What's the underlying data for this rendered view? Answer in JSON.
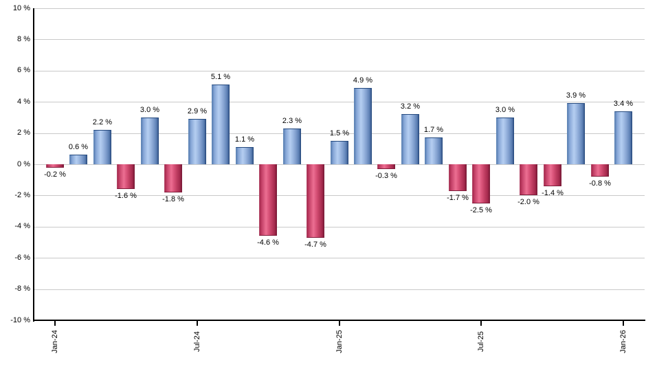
{
  "chart_data": {
    "type": "bar",
    "title": "",
    "xlabel": "",
    "ylabel": "",
    "ylim": [
      -10,
      10
    ],
    "y_step": 2,
    "grid": {
      "horizontal": true,
      "vertical": false
    },
    "legend": "none",
    "bars": [
      {
        "value": -0.2,
        "label": "-0.2 %"
      },
      {
        "value": 0.6,
        "label": "0.6 %"
      },
      {
        "value": 2.2,
        "label": "2.2 %"
      },
      {
        "value": -1.6,
        "label": "-1.6 %"
      },
      {
        "value": 3.0,
        "label": "3.0 %"
      },
      {
        "value": -1.8,
        "label": "-1.8 %"
      },
      {
        "value": 2.9,
        "label": "2.9 %"
      },
      {
        "value": 5.1,
        "label": "5.1 %"
      },
      {
        "value": 1.1,
        "label": "1.1 %"
      },
      {
        "value": -4.6,
        "label": "-4.6 %"
      },
      {
        "value": 2.3,
        "label": "2.3 %"
      },
      {
        "value": -4.7,
        "label": "-4.7 %"
      },
      {
        "value": 1.5,
        "label": "1.5 %"
      },
      {
        "value": 4.9,
        "label": "4.9 %"
      },
      {
        "value": -0.3,
        "label": "-0.3 %"
      },
      {
        "value": 3.2,
        "label": "3.2 %"
      },
      {
        "value": 1.7,
        "label": "1.7 %"
      },
      {
        "value": -1.7,
        "label": "-1.7 %"
      },
      {
        "value": -2.5,
        "label": "-2.5 %"
      },
      {
        "value": 3.0,
        "label": "3.0 %"
      },
      {
        "value": -2.0,
        "label": "-2.0 %"
      },
      {
        "value": -1.4,
        "label": "-1.4 %"
      },
      {
        "value": 3.9,
        "label": "3.9 %"
      },
      {
        "value": -0.8,
        "label": "-0.8 %"
      },
      {
        "value": 3.4,
        "label": "3.4 %"
      }
    ],
    "x_ticks": [
      {
        "label": "Jan-24",
        "bar_index": 0
      },
      {
        "label": "Jul-24",
        "bar_index": 6
      },
      {
        "label": "Jan-25",
        "bar_index": 12
      },
      {
        "label": "Jul-25",
        "bar_index": 18
      },
      {
        "label": "Jan-26",
        "bar_index": 24
      }
    ],
    "y_ticks": [
      "10 %",
      "8 %",
      "6 %",
      "4 %",
      "2 %",
      "0 %",
      "-2 %",
      "-4 %",
      "-6 %",
      "-8 %",
      "-10 %"
    ],
    "colors": {
      "positive_bar": "#b5cef1",
      "positive_bar_edge": "#24497e",
      "negative_bar": "#ec6f92",
      "negative_bar_edge": "#7f1c3a",
      "gridline": "#c9c9c9",
      "axis": "#000000",
      "background": "#ffffff",
      "label_text": "#000000"
    }
  }
}
